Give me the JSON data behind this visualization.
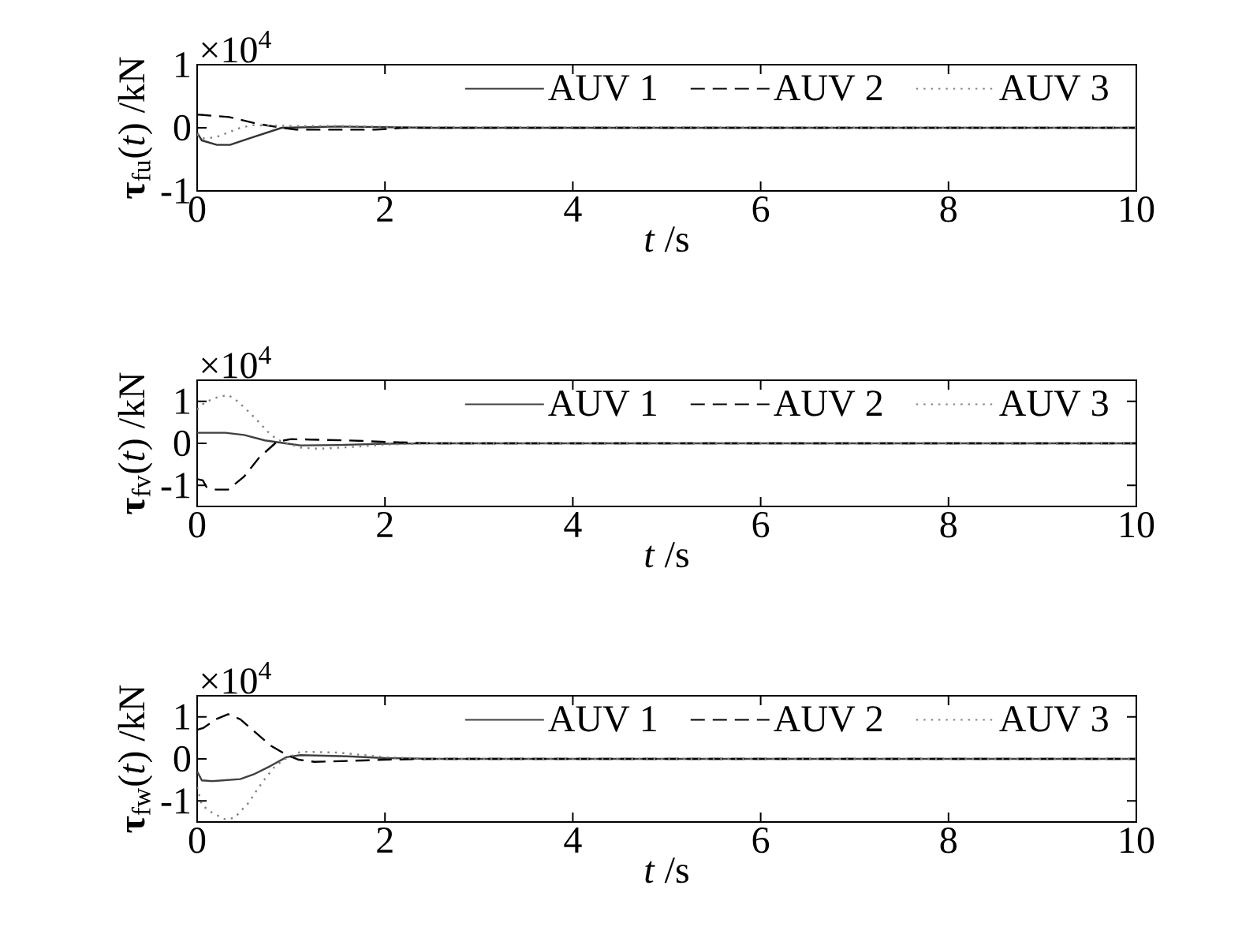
{
  "chart_data": [
    {
      "type": "line",
      "xlabel": "*t* /s",
      "ylabel": "**τ**$_{fu}$(*t*) /kN",
      "annotations": [
        "×10$^{4}$"
      ],
      "xlim": [
        0,
        10
      ],
      "ylim": [
        -1,
        1
      ],
      "xticks": [
        0,
        2,
        4,
        6,
        8,
        10
      ],
      "yticks": [
        -1,
        0,
        1
      ],
      "legend": "top right",
      "series": [
        {
          "name": "AUV 1",
          "color": "#333333",
          "line_style": "solid",
          "x": [
            0,
            0.05,
            0.21,
            0.35,
            0.55,
            0.9,
            1.5,
            2.5,
            10
          ],
          "values": [
            -0.08,
            -0.2,
            -0.27,
            -0.27,
            -0.17,
            0,
            0.02,
            0,
            0
          ]
        },
        {
          "name": "AUV 2",
          "color": "#000000",
          "line_style": "dashed",
          "x": [
            0,
            0.34,
            0.65,
            0.9,
            1.05,
            1.9,
            2.2,
            10
          ],
          "values": [
            0.21,
            0.17,
            0.06,
            0,
            -0.03,
            -0.03,
            0,
            0
          ]
        },
        {
          "name": "AUV 3",
          "color": "#808080",
          "line_style": "dotted",
          "x": [
            0,
            0.05,
            0.2,
            0.32,
            0.46,
            0.58,
            1.0,
            1.5,
            2.2,
            10
          ],
          "values": [
            -0.1,
            -0.17,
            -0.15,
            -0.08,
            0,
            0.04,
            0.03,
            0.03,
            0.01,
            0
          ]
        }
      ]
    },
    {
      "type": "line",
      "xlabel": "*t* /s",
      "ylabel": "**τ**$_{fv}$(*t*) /kN",
      "annotations": [
        "×10$^{4}$"
      ],
      "xlim": [
        0,
        10
      ],
      "ylim": [
        -1.5,
        1.5
      ],
      "xticks": [
        0,
        2,
        4,
        6,
        8,
        10
      ],
      "yticks": [
        -1,
        0,
        1
      ],
      "legend": "top right",
      "series": [
        {
          "name": "AUV 1",
          "color": "#404040",
          "line_style": "solid",
          "x": [
            0,
            0.3,
            0.5,
            0.72,
            0.94,
            1.1,
            1.5,
            2.0,
            2.5,
            10
          ],
          "values": [
            0.25,
            0.25,
            0.2,
            0.07,
            0,
            -0.05,
            -0.04,
            -0.01,
            0,
            0
          ]
        },
        {
          "name": "AUV 2",
          "color": "#000000",
          "line_style": "dashed",
          "x": [
            0,
            0.06,
            0.1,
            0.2,
            0.33,
            0.5,
            0.66,
            0.85,
            1.0,
            1.2,
            1.6,
            2.05,
            2.5,
            10
          ],
          "values": [
            -0.85,
            -0.88,
            -1.04,
            -1.1,
            -1.1,
            -0.79,
            -0.34,
            0.04,
            0.1,
            0.09,
            0.07,
            0.03,
            0,
            0
          ]
        },
        {
          "name": "AUV 3",
          "color": "#808080",
          "line_style": "dotted",
          "x": [
            0,
            0.08,
            0.22,
            0.33,
            0.43,
            0.55,
            0.66,
            0.75,
            0.85,
            0.96,
            1.1,
            1.3,
            1.7,
            2.0,
            2.5,
            10
          ],
          "values": [
            0.8,
            0.97,
            1.1,
            1.15,
            1.0,
            0.75,
            0.5,
            0.28,
            0.09,
            0,
            -0.1,
            -0.13,
            -0.08,
            -0.03,
            0,
            0
          ]
        }
      ]
    },
    {
      "type": "line",
      "xlabel": "*t* /s",
      "ylabel": "**τ**$_{fw}$(*t*) /kN",
      "annotations": [
        "×10$^{4}$"
      ],
      "xlim": [
        0,
        10
      ],
      "ylim": [
        -1.5,
        1.5
      ],
      "xticks": [
        0,
        2,
        4,
        6,
        8,
        10
      ],
      "yticks": [
        -1,
        0,
        1
      ],
      "legend": "top right",
      "series": [
        {
          "name": "AUV 1",
          "color": "#404040",
          "line_style": "solid",
          "x": [
            0,
            0.05,
            0.16,
            0.46,
            0.6,
            0.78,
            0.95,
            1.1,
            1.6,
            2.0,
            2.5,
            10
          ],
          "values": [
            -0.3,
            -0.51,
            -0.53,
            -0.48,
            -0.37,
            -0.17,
            0.04,
            0.09,
            0.06,
            0.02,
            0,
            0
          ]
        },
        {
          "name": "AUV 2",
          "color": "#000000",
          "line_style": "dashed",
          "x": [
            0,
            0.07,
            0.2,
            0.33,
            0.46,
            0.62,
            0.78,
            0.95,
            1.08,
            1.25,
            1.6,
            2.0,
            2.5,
            10
          ],
          "values": [
            0.69,
            0.74,
            0.94,
            1.06,
            0.94,
            0.63,
            0.32,
            0.1,
            -0.02,
            -0.07,
            -0.05,
            -0.02,
            0,
            0
          ]
        },
        {
          "name": "AUV 3",
          "color": "#808080",
          "line_style": "dotted",
          "x": [
            0,
            0.05,
            0.16,
            0.3,
            0.4,
            0.46,
            0.55,
            0.64,
            0.72,
            0.83,
            0.94,
            1.1,
            1.5,
            2.0,
            2.5,
            10
          ],
          "values": [
            -0.67,
            -1.1,
            -1.28,
            -1.44,
            -1.4,
            -1.25,
            -1.04,
            -0.73,
            -0.48,
            -0.17,
            0,
            0.17,
            0.15,
            0.04,
            0,
            0
          ]
        }
      ]
    }
  ]
}
